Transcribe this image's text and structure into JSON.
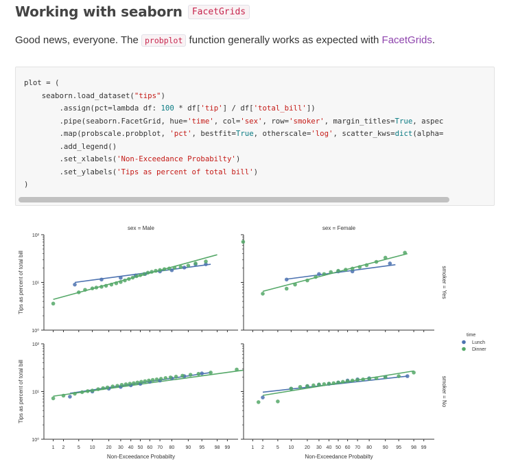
{
  "heading": {
    "title": "Working with seaborn",
    "code": "FacetGrids"
  },
  "intro": {
    "before": "Good news, everyone. The ",
    "code": "probplot",
    "middle": " function generally works as expected with ",
    "link": "FacetGrids",
    "after": "."
  },
  "code_lines": [
    [
      {
        "t": "plot = ("
      }
    ],
    [
      {
        "t": "    seaborn.load_dataset("
      },
      {
        "t": "\"tips\"",
        "c": "s"
      },
      {
        "t": ")"
      }
    ],
    [
      {
        "t": "        .assign(pct=lambda df: "
      },
      {
        "t": "100",
        "c": "n"
      },
      {
        "t": " * df["
      },
      {
        "t": "'tip'",
        "c": "s"
      },
      {
        "t": "] / df["
      },
      {
        "t": "'total_bill'",
        "c": "s"
      },
      {
        "t": "])"
      }
    ],
    [
      {
        "t": "        .pipe(seaborn.FacetGrid, hue="
      },
      {
        "t": "'time'",
        "c": "s"
      },
      {
        "t": ", col="
      },
      {
        "t": "'sex'",
        "c": "s"
      },
      {
        "t": ", row="
      },
      {
        "t": "'smoker'",
        "c": "s"
      },
      {
        "t": ", margin_titles="
      },
      {
        "t": "True",
        "c": "n"
      },
      {
        "t": ", aspec"
      }
    ],
    [
      {
        "t": "        .map(probscale.probplot, "
      },
      {
        "t": "'pct'",
        "c": "s"
      },
      {
        "t": ", bestfit="
      },
      {
        "t": "True",
        "c": "n"
      },
      {
        "t": ", otherscale="
      },
      {
        "t": "'log'",
        "c": "s"
      },
      {
        "t": ", scatter_kws="
      },
      {
        "t": "dict",
        "c": "n"
      },
      {
        "t": "(alpha="
      }
    ],
    [
      {
        "t": "        .add_legend()"
      }
    ],
    [
      {
        "t": "        .set_xlabels("
      },
      {
        "t": "'Non-Exceedance Probabilty'",
        "c": "s"
      },
      {
        "t": ")"
      }
    ],
    [
      {
        "t": "        .set_ylabels("
      },
      {
        "t": "'Tips as percent of total bill'",
        "c": "s"
      },
      {
        "t": ")"
      }
    ],
    [
      {
        "t": ")"
      }
    ]
  ],
  "chart_data": {
    "type": "scatter",
    "x_scale": "probability",
    "y_scale": "log",
    "xlabel": "Non-Exceedance Probabilty",
    "ylabel": "Tips as percent of total bill",
    "x_ticks": [
      1,
      2,
      5,
      10,
      20,
      30,
      40,
      50,
      60,
      70,
      80,
      90,
      95,
      98,
      99
    ],
    "y_ticks": [
      {
        "value": 1,
        "label": "10⁰"
      },
      {
        "value": 10,
        "label": "10¹"
      },
      {
        "value": 100,
        "label": "10²"
      }
    ],
    "ylim": [
      1,
      100
    ],
    "col_titles": [
      "sex = Male",
      "sex = Female"
    ],
    "row_titles": [
      "smoker = Yes",
      "smoker = No"
    ],
    "legend": {
      "title": "time",
      "placement": "right",
      "entries": [
        {
          "name": "Lunch",
          "color": "#4c72b0"
        },
        {
          "name": "Dinner",
          "color": "#55a868"
        }
      ]
    },
    "panels": [
      {
        "col": "sex = Male",
        "row": "smoker = Yes",
        "series": [
          {
            "name": "Lunch",
            "color": "#4c72b0",
            "x": [
              4,
              15,
              30,
              45,
              55,
              70,
              80,
              88,
              93,
              96
            ],
            "y": [
              9,
              11.5,
              12.5,
              14,
              15,
              17,
              18,
              20.5,
              24,
              24
            ],
            "fit": [
              [
                4,
                10
              ],
              [
                97,
                24
              ]
            ]
          },
          {
            "name": "Dinner",
            "color": "#55a868",
            "x": [
              1,
              5,
              7,
              10,
              12,
              15,
              18,
              22,
              26,
              30,
              34,
              38,
              42,
              46,
              50,
              54,
              58,
              62,
              66,
              70,
              74,
              78,
              82,
              86,
              90,
              93,
              96,
              99.7
            ],
            "y": [
              3.6,
              6.2,
              7,
              7.5,
              7.8,
              8.1,
              8.5,
              9,
              9.6,
              10.2,
              11,
              11.8,
              12.6,
              13.5,
              14.2,
              15,
              16,
              16.7,
              17.5,
              18.2,
              19,
              19.6,
              20.3,
              21,
              22.5,
              25,
              27.5,
              71
            ],
            "fit": [
              [
                1,
                4.4
              ],
              [
                98,
                38
              ]
            ]
          }
        ]
      },
      {
        "col": "sex = Female",
        "row": "smoker = Yes",
        "series": [
          {
            "name": "Lunch",
            "color": "#4c72b0",
            "x": [
              8,
              30,
              50,
              65,
              92
            ],
            "y": [
              11.5,
              15,
              17,
              17,
              25
            ],
            "fit": [
              [
                8,
                11.7
              ],
              [
                94,
                23.5
              ]
            ]
          },
          {
            "name": "Dinner",
            "color": "#55a868",
            "x": [
              2,
              8,
              12,
              20,
              27,
              35,
              42,
              50,
              58,
              65,
              72,
              78,
              85,
              90,
              96.5
            ],
            "y": [
              5.8,
              7.4,
              9,
              11,
              13,
              15,
              16.5,
              17.5,
              18.5,
              19.5,
              21,
              23,
              27,
              33,
              42
            ],
            "fit": [
              [
                2,
                6.5
              ],
              [
                97,
                40
              ]
            ]
          }
        ]
      },
      {
        "col": "sex = Male",
        "row": "smoker = No",
        "series": [
          {
            "name": "Lunch",
            "color": "#4c72b0",
            "x": [
              3,
              10,
              20,
              30,
              40,
              50,
              60,
              70,
              80,
              88,
              95
            ],
            "y": [
              7.8,
              10,
              11.5,
              12.5,
              13.5,
              14.5,
              16,
              17,
              19,
              21,
              24
            ],
            "fit": [
              [
                3,
                9.2
              ],
              [
                97,
                25
              ]
            ]
          },
          {
            "name": "Dinner",
            "color": "#55a868",
            "x": [
              1,
              2,
              4,
              6,
              8,
              10,
              13,
              16,
              19,
              23,
              27,
              31,
              35,
              39,
              43,
              47,
              51,
              55,
              59,
              63,
              67,
              71,
              75,
              79,
              83,
              87,
              91,
              94,
              97,
              99.5
            ],
            "y": [
              7.2,
              8.2,
              9,
              9.7,
              10.2,
              10.5,
              11.2,
              11.8,
              12.2,
              12.8,
              13.2,
              13.8,
              14.2,
              14.6,
              15,
              15.5,
              16,
              16.5,
              17,
              17.5,
              18,
              18.5,
              19.2,
              19.8,
              20.5,
              21.5,
              22.5,
              23.5,
              25,
              29
            ],
            "fit": [
              [
                1,
                8
              ],
              [
                99.7,
                28
              ]
            ]
          }
        ]
      },
      {
        "col": "sex = Female",
        "row": "smoker = No",
        "series": [
          {
            "name": "Lunch",
            "color": "#4c72b0",
            "x": [
              2,
              10,
              20,
              30,
              40,
              50,
              60,
              70,
              80,
              90,
              97
            ],
            "y": [
              7.5,
              11.5,
              13,
              14,
              14.5,
              15.5,
              17,
              18,
              19,
              20,
              21
            ],
            "fit": [
              [
                2,
                9.7
              ],
              [
                97,
                21
              ]
            ]
          },
          {
            "name": "Dinner",
            "color": "#55a868",
            "x": [
              1.5,
              5,
              10,
              15,
              20,
              25,
              30,
              35,
              40,
              45,
              50,
              55,
              60,
              65,
              70,
              75,
              80,
              85,
              90,
              95,
              98
            ],
            "y": [
              6,
              6.2,
              11.5,
              12.5,
              13,
              13.5,
              14,
              14.3,
              14.7,
              15,
              15.5,
              16,
              16.5,
              17,
              17.5,
              18,
              18.5,
              19,
              20,
              21,
              25
            ],
            "fit": [
              [
                2,
                8.3
              ],
              [
                98,
                27
              ]
            ]
          }
        ]
      }
    ]
  }
}
